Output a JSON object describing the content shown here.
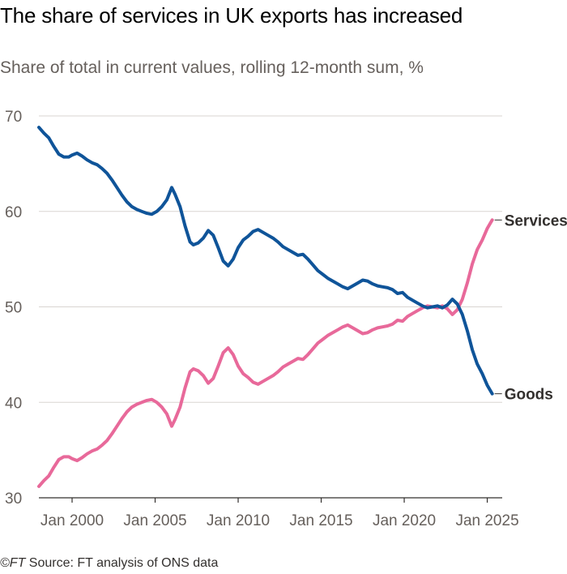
{
  "chart_data": {
    "type": "line",
    "title": "The share of services in UK exports has increased",
    "subtitle": "Share of total in current values, rolling 12-month sum, %",
    "source_prefix": "©FT",
    "source": " Source: FT analysis of ONS data",
    "xlabel": "",
    "ylabel": "",
    "ylim": [
      30,
      70
    ],
    "xlim": [
      1998.0,
      2025.9
    ],
    "yticks": [
      30,
      40,
      50,
      60,
      70
    ],
    "ytick_labels": [
      "30",
      "40",
      "50",
      "60",
      "70"
    ],
    "xticks": [
      2000,
      2005,
      2010,
      2015,
      2020,
      2025
    ],
    "xtick_labels": [
      "Jan 2000",
      "Jan 2005",
      "Jan 2010",
      "Jan 2015",
      "Jan 2020",
      "Jan 2025"
    ],
    "grid": true,
    "colors": {
      "Services": "#e8699a",
      "Goods": "#0f5499",
      "grid": "#d9d5d1",
      "axis": "#33302e"
    },
    "series": [
      {
        "name": "Services",
        "label": "Services",
        "x": [
          1998.0,
          1998.3,
          1998.6,
          1998.9,
          1999.2,
          1999.5,
          1999.8,
          2000.0,
          2000.3,
          2000.6,
          2000.9,
          2001.2,
          2001.5,
          2001.8,
          2002.1,
          2002.4,
          2002.7,
          2003.0,
          2003.3,
          2003.6,
          2003.9,
          2004.2,
          2004.5,
          2004.8,
          2005.1,
          2005.4,
          2005.7,
          2006.0,
          2006.2,
          2006.5,
          2006.8,
          2007.1,
          2007.3,
          2007.6,
          2007.9,
          2008.2,
          2008.5,
          2008.8,
          2009.1,
          2009.4,
          2009.7,
          2010.0,
          2010.3,
          2010.6,
          2010.9,
          2011.2,
          2011.5,
          2011.8,
          2012.1,
          2012.4,
          2012.7,
          2013.0,
          2013.3,
          2013.6,
          2013.9,
          2014.2,
          2014.5,
          2014.8,
          2015.1,
          2015.4,
          2015.7,
          2016.0,
          2016.3,
          2016.6,
          2016.9,
          2017.2,
          2017.5,
          2017.8,
          2018.1,
          2018.4,
          2018.7,
          2019.0,
          2019.3,
          2019.6,
          2019.9,
          2020.2,
          2020.5,
          2020.8,
          2021.1,
          2021.4,
          2021.7,
          2022.0,
          2022.3,
          2022.6,
          2022.9,
          2023.2,
          2023.5,
          2023.8,
          2024.1,
          2024.4,
          2024.7,
          2025.0,
          2025.3
        ],
        "values": [
          31.2,
          31.8,
          32.3,
          33.2,
          34.0,
          34.3,
          34.3,
          34.1,
          33.9,
          34.2,
          34.6,
          34.9,
          35.1,
          35.5,
          36.0,
          36.7,
          37.5,
          38.3,
          39.0,
          39.5,
          39.8,
          40.0,
          40.2,
          40.3,
          40.0,
          39.5,
          38.8,
          37.5,
          38.2,
          39.5,
          41.5,
          43.2,
          43.5,
          43.3,
          42.8,
          42.0,
          42.5,
          43.8,
          45.2,
          45.7,
          45.0,
          43.8,
          43.0,
          42.6,
          42.1,
          41.9,
          42.2,
          42.5,
          42.8,
          43.2,
          43.7,
          44.0,
          44.3,
          44.6,
          44.5,
          45.0,
          45.6,
          46.2,
          46.6,
          47.0,
          47.3,
          47.6,
          47.9,
          48.1,
          47.8,
          47.5,
          47.2,
          47.3,
          47.6,
          47.8,
          47.9,
          48.0,
          48.2,
          48.6,
          48.5,
          49.0,
          49.3,
          49.6,
          49.9,
          50.1,
          50.0,
          49.9,
          50.1,
          49.8,
          49.2,
          49.7,
          50.8,
          52.5,
          54.5,
          56.0,
          57.0,
          58.2,
          59.1
        ]
      },
      {
        "name": "Goods",
        "label": "Goods",
        "x": [
          1998.0,
          1998.3,
          1998.6,
          1998.9,
          1999.2,
          1999.5,
          1999.8,
          2000.0,
          2000.3,
          2000.6,
          2000.9,
          2001.2,
          2001.5,
          2001.8,
          2002.1,
          2002.4,
          2002.7,
          2003.0,
          2003.3,
          2003.6,
          2003.9,
          2004.2,
          2004.5,
          2004.8,
          2005.1,
          2005.4,
          2005.7,
          2006.0,
          2006.2,
          2006.5,
          2006.8,
          2007.1,
          2007.3,
          2007.6,
          2007.9,
          2008.2,
          2008.5,
          2008.8,
          2009.1,
          2009.4,
          2009.7,
          2010.0,
          2010.3,
          2010.6,
          2010.9,
          2011.2,
          2011.5,
          2011.8,
          2012.1,
          2012.4,
          2012.7,
          2013.0,
          2013.3,
          2013.6,
          2013.9,
          2014.2,
          2014.5,
          2014.8,
          2015.1,
          2015.4,
          2015.7,
          2016.0,
          2016.3,
          2016.6,
          2016.9,
          2017.2,
          2017.5,
          2017.8,
          2018.1,
          2018.4,
          2018.7,
          2019.0,
          2019.3,
          2019.6,
          2019.9,
          2020.2,
          2020.5,
          2020.8,
          2021.1,
          2021.4,
          2021.7,
          2022.0,
          2022.3,
          2022.6,
          2022.9,
          2023.2,
          2023.5,
          2023.8,
          2024.1,
          2024.4,
          2024.7,
          2025.0,
          2025.3
        ],
        "values": [
          68.8,
          68.2,
          67.7,
          66.8,
          66.0,
          65.7,
          65.7,
          65.9,
          66.1,
          65.8,
          65.4,
          65.1,
          64.9,
          64.5,
          64.0,
          63.3,
          62.5,
          61.7,
          61.0,
          60.5,
          60.2,
          60.0,
          59.8,
          59.7,
          60.0,
          60.5,
          61.2,
          62.5,
          61.8,
          60.5,
          58.5,
          56.8,
          56.5,
          56.7,
          57.2,
          58.0,
          57.5,
          56.2,
          54.8,
          54.3,
          55.0,
          56.2,
          57.0,
          57.4,
          57.9,
          58.1,
          57.8,
          57.5,
          57.2,
          56.8,
          56.3,
          56.0,
          55.7,
          55.4,
          55.5,
          55.0,
          54.4,
          53.8,
          53.4,
          53.0,
          52.7,
          52.4,
          52.1,
          51.9,
          52.2,
          52.5,
          52.8,
          52.7,
          52.4,
          52.2,
          52.1,
          52.0,
          51.8,
          51.4,
          51.5,
          51.0,
          50.7,
          50.4,
          50.1,
          49.9,
          50.0,
          50.1,
          49.9,
          50.2,
          50.8,
          50.3,
          49.2,
          47.5,
          45.5,
          44.0,
          43.0,
          41.8,
          40.9
        ]
      }
    ]
  }
}
